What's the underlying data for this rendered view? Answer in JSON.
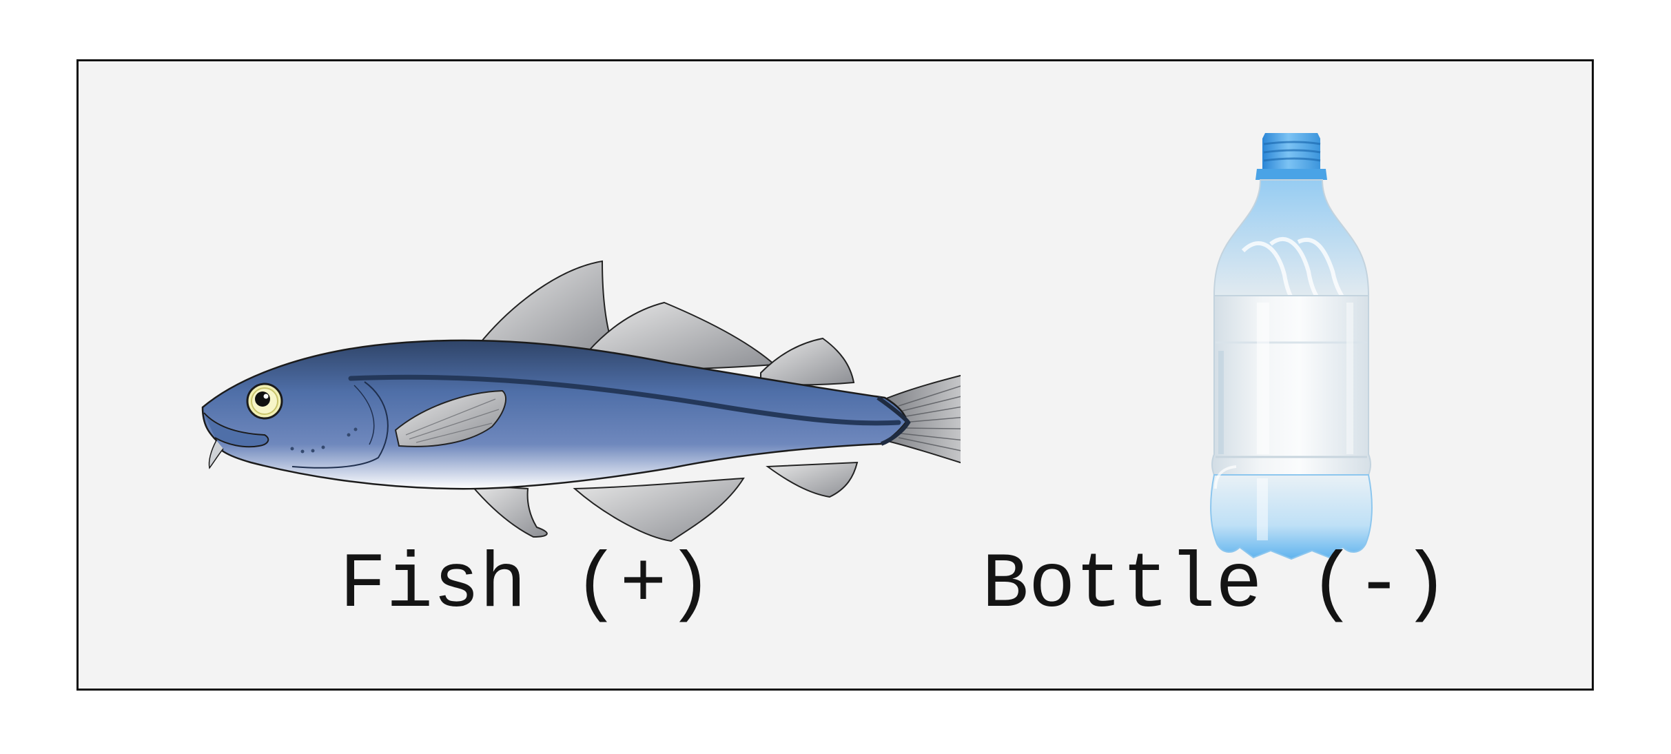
{
  "items": [
    {
      "icon": "fish-icon",
      "label": "Fish (+)"
    },
    {
      "icon": "plastic-bottle-icon",
      "label": "Bottle (-)"
    }
  ],
  "colors": {
    "panel_background": "#f3f3f3",
    "panel_border": "#111111",
    "fish_body": "#4f6fa8",
    "fish_back": "#34496f",
    "fish_fins": "#b9bbbf",
    "bottle_cap": "#4aa3e6",
    "bottle_body": "#e6eef3"
  }
}
